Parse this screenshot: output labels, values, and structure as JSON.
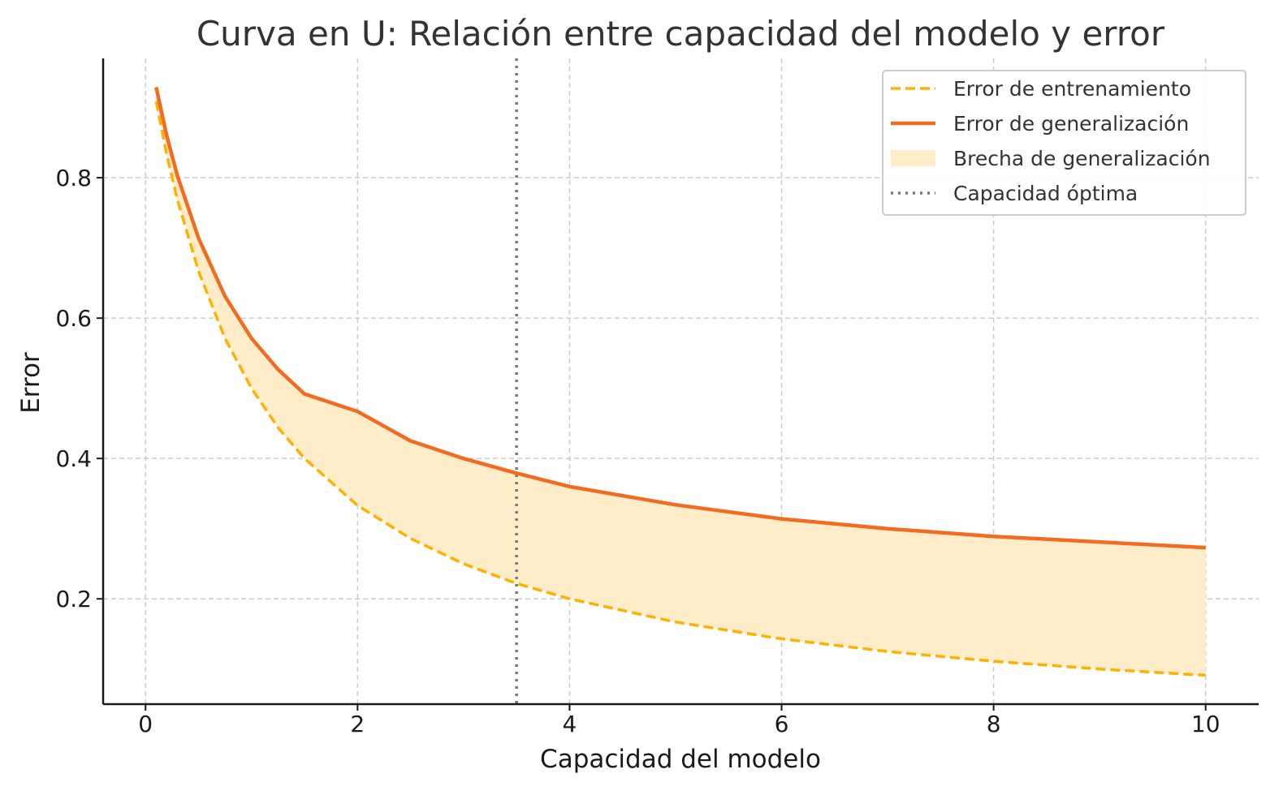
{
  "chart_data": {
    "type": "line",
    "title": "Curva en U: Relación entre capacidad del modelo y error",
    "xlabel": "Capacidad del modelo",
    "ylabel": "Error",
    "xlim": [
      -0.4,
      10.5
    ],
    "ylim": [
      0.05,
      0.97
    ],
    "x_ticks": [
      0,
      2,
      4,
      6,
      8,
      10
    ],
    "y_ticks": [
      0.2,
      0.4,
      0.6,
      0.8
    ],
    "x_tick_labels": [
      "0",
      "2",
      "4",
      "6",
      "8",
      "10"
    ],
    "y_tick_labels": [
      "0.2",
      "0.4",
      "0.6",
      "0.8"
    ],
    "grid": true,
    "legend_position": "top-right",
    "x": [
      0.1,
      0.2,
      0.3,
      0.5,
      0.75,
      1.0,
      1.25,
      1.5,
      2.0,
      2.5,
      3.0,
      3.5,
      4.0,
      5.0,
      6.0,
      7.0,
      8.0,
      9.0,
      10.0
    ],
    "series": [
      {
        "name": "Error de entrenamiento",
        "color": "#FFB000",
        "style": "dashed",
        "values": [
          0.909,
          0.833,
          0.769,
          0.667,
          0.571,
          0.5,
          0.444,
          0.4,
          0.333,
          0.286,
          0.25,
          0.222,
          0.2,
          0.167,
          0.143,
          0.125,
          0.111,
          0.1,
          0.091
        ]
      },
      {
        "name": "Error de generalización",
        "color": "#F26B21",
        "style": "solid",
        "values": [
          0.929,
          0.86,
          0.803,
          0.714,
          0.631,
          0.571,
          0.527,
          0.492,
          0.467,
          0.425,
          0.4,
          0.379,
          0.36,
          0.334,
          0.314,
          0.3,
          0.289,
          0.281,
          0.273
        ]
      }
    ],
    "fill_between": {
      "name": "Brecha de generalización",
      "color": "#FFEDC9",
      "lower_series": "Error de entrenamiento",
      "upper_series": "Error de generalización"
    },
    "vline": {
      "name": "Capacidad óptima",
      "x": 3.5,
      "color": "#777777",
      "style": "dotted"
    }
  }
}
